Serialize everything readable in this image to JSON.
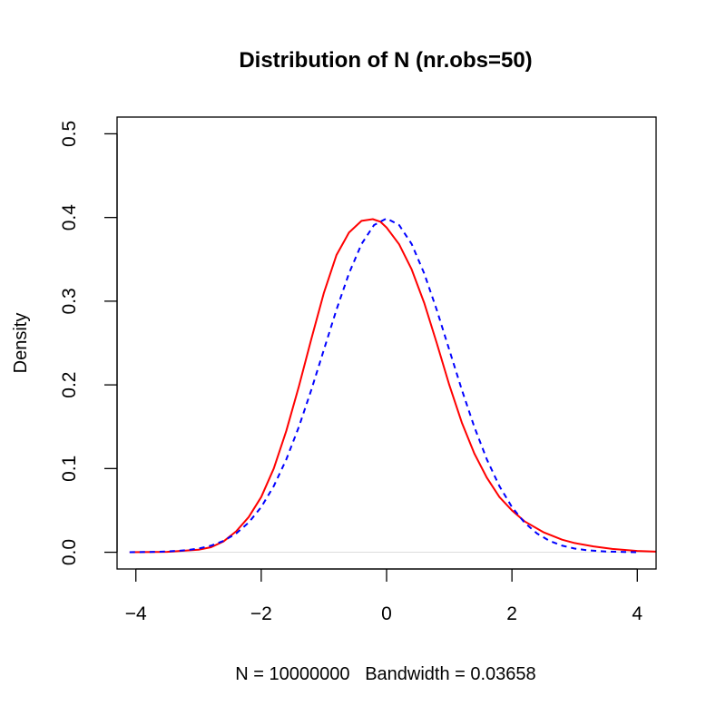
{
  "chart_data": {
    "type": "line",
    "title": "Distribution of N (nr.obs=50)",
    "xlabel": "N = 10000000   Bandwidth = 0.03658",
    "ylabel": "Density",
    "xlim": [
      -4.3,
      4.3
    ],
    "ylim": [
      -0.02,
      0.52
    ],
    "x_ticks": [
      -4,
      -2,
      0,
      2,
      4
    ],
    "x_tick_labels": [
      "−4",
      "−2",
      "0",
      "2",
      "4"
    ],
    "y_ticks": [
      0.0,
      0.1,
      0.2,
      0.3,
      0.4,
      0.5
    ],
    "y_tick_labels": [
      "0.0",
      "0.1",
      "0.2",
      "0.3",
      "0.4",
      "0.5"
    ],
    "grid": false,
    "series": [
      {
        "color": "#ff0000",
        "style": "solid",
        "x": [
          -4.1,
          -3.5,
          -3.0,
          -2.8,
          -2.6,
          -2.4,
          -2.2,
          -2.0,
          -1.8,
          -1.6,
          -1.4,
          -1.2,
          -1.0,
          -0.8,
          -0.6,
          -0.4,
          -0.22,
          -0.1,
          0.0,
          0.2,
          0.4,
          0.6,
          0.8,
          1.0,
          1.2,
          1.4,
          1.6,
          1.8,
          2.0,
          2.2,
          2.5,
          2.8,
          3.0,
          3.3,
          3.6,
          4.0,
          4.3
        ],
        "y": [
          0.0,
          0.0005,
          0.003,
          0.006,
          0.013,
          0.025,
          0.042,
          0.066,
          0.1,
          0.145,
          0.198,
          0.255,
          0.31,
          0.355,
          0.382,
          0.396,
          0.398,
          0.395,
          0.388,
          0.368,
          0.338,
          0.298,
          0.25,
          0.2,
          0.155,
          0.118,
          0.089,
          0.066,
          0.05,
          0.037,
          0.024,
          0.015,
          0.011,
          0.007,
          0.004,
          0.0015,
          0.0007
        ]
      },
      {
        "color": "#0000ff",
        "style": "dashed",
        "x": [
          -4.1,
          -3.8,
          -3.5,
          -3.2,
          -3.0,
          -2.8,
          -2.6,
          -2.4,
          -2.2,
          -2.0,
          -1.8,
          -1.6,
          -1.4,
          -1.2,
          -1.0,
          -0.8,
          -0.6,
          -0.4,
          -0.2,
          0.0,
          0.2,
          0.4,
          0.6,
          0.8,
          1.0,
          1.2,
          1.4,
          1.6,
          1.8,
          2.0,
          2.2,
          2.4,
          2.6,
          2.8,
          3.0,
          3.2,
          3.5,
          3.8,
          4.0
        ],
        "y": [
          0.0001,
          0.0003,
          0.0009,
          0.0024,
          0.0044,
          0.0079,
          0.0136,
          0.0224,
          0.0355,
          0.054,
          0.079,
          0.1109,
          0.1497,
          0.1942,
          0.242,
          0.2897,
          0.3332,
          0.3683,
          0.391,
          0.3989,
          0.391,
          0.3683,
          0.3332,
          0.2897,
          0.242,
          0.1942,
          0.1497,
          0.1109,
          0.079,
          0.054,
          0.0355,
          0.0224,
          0.0136,
          0.0079,
          0.0044,
          0.0024,
          0.0009,
          0.0003,
          0.0001
        ]
      }
    ],
    "reference_lines": [
      {
        "y": 0,
        "color": "#dcdcdc"
      }
    ]
  }
}
